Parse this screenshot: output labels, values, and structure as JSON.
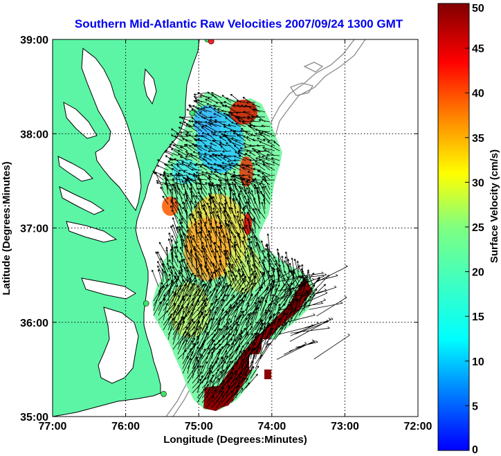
{
  "map": {
    "title": "Southern Mid-Atlantic Raw Velocities 2007/09/24 1300 GMT",
    "xlabel": "Longitude (Degrees:Minutes)",
    "ylabel": "Latitude (Degrees:Minutes)",
    "lon_ticks": [
      "77:00",
      "76:00",
      "75:00",
      "74:00",
      "73:00",
      "72:00"
    ],
    "lat_ticks": [
      "39:00",
      "38:00",
      "37:00",
      "36:00",
      "35:00"
    ],
    "lon_range": [
      -77,
      -72
    ],
    "lat_range": [
      35,
      39
    ],
    "grid": true,
    "colors": {
      "land": "#5cf5a6",
      "water": "#ffffff",
      "coastline": "#000000",
      "bathymetry": "#8a8a8a",
      "arrows": "#000000",
      "site_green": "#3fe36a",
      "site_red": "#ff2020"
    },
    "colorbar": {
      "label": "Surface Velocity (cm/s)",
      "colormap": "jet",
      "range": [
        0,
        50
      ],
      "ticks": [
        "0",
        "5",
        "10",
        "15",
        "20",
        "25",
        "30",
        "35",
        "40",
        "45",
        "50"
      ]
    },
    "sites": [
      {
        "color": "green",
        "lon": -74.88,
        "lat": 39.0
      },
      {
        "color": "red",
        "lon": -74.83,
        "lat": 38.98
      },
      {
        "color": "green",
        "lon": -75.09,
        "lat": 38.22
      },
      {
        "color": "green",
        "lon": -75.72,
        "lat": 36.2
      },
      {
        "color": "green",
        "lon": -75.48,
        "lat": 35.24
      }
    ]
  }
}
